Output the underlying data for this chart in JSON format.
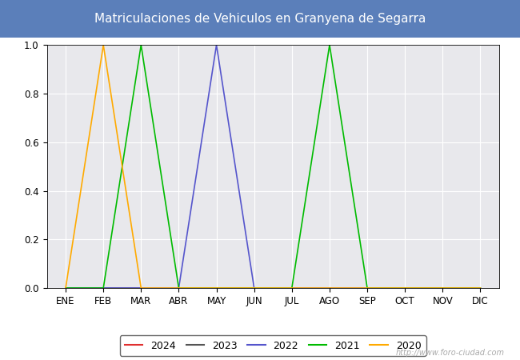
{
  "title": "Matriculaciones de Vehiculos en Granyena de Segarra",
  "title_bg_color": "#5b7fba",
  "title_text_color": "#ffffff",
  "plot_bg_color": "#e8e8ec",
  "months": [
    "ENE",
    "FEB",
    "MAR",
    "ABR",
    "MAY",
    "JUN",
    "JUL",
    "AGO",
    "SEP",
    "OCT",
    "NOV",
    "DIC"
  ],
  "series": {
    "2024": {
      "color": "#e03030",
      "data": [
        0,
        0,
        0,
        0,
        0,
        0,
        0,
        0,
        0,
        0,
        0,
        0
      ]
    },
    "2023": {
      "color": "#555555",
      "data": [
        0,
        0,
        0,
        0,
        0,
        0,
        0,
        0,
        0,
        0,
        0,
        0
      ]
    },
    "2022": {
      "color": "#5555cc",
      "data": [
        0,
        0,
        0,
        0,
        1,
        0,
        0,
        0,
        0,
        0,
        0,
        0
      ]
    },
    "2021": {
      "color": "#00bb00",
      "data": [
        0,
        0,
        1,
        0,
        0,
        0,
        0,
        1,
        0,
        0,
        0,
        0
      ]
    },
    "2020": {
      "color": "#ffaa00",
      "data": [
        0,
        1,
        0,
        0,
        0,
        0,
        0,
        0,
        0,
        0,
        0,
        0
      ]
    }
  },
  "ylim": [
    0,
    1.0
  ],
  "yticks": [
    0.0,
    0.2,
    0.4,
    0.6,
    0.8,
    1.0
  ],
  "watermark": "http://www.foro-ciudad.com",
  "grid_color": "#ffffff",
  "legend_order": [
    "2024",
    "2023",
    "2022",
    "2021",
    "2020"
  ],
  "fig_bg_color": "#ffffff"
}
